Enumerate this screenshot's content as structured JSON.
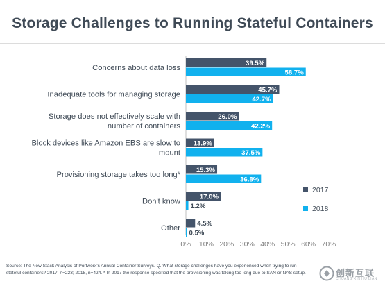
{
  "chart_data": {
    "type": "bar",
    "orientation": "horizontal",
    "title": "Storage Challenges to Running Stateful Containers",
    "categories": [
      [
        "Concerns about data loss"
      ],
      [
        "Inadequate tools for managing storage"
      ],
      [
        "Storage does not effectively scale with",
        "number of containers"
      ],
      [
        "Block devices like Amazon EBS are slow to",
        "mount"
      ],
      [
        "Provisioning storage takes too long*"
      ],
      [
        "Don't know"
      ],
      [
        "Other"
      ]
    ],
    "series": [
      {
        "name": "2017",
        "color": "#44546a",
        "values": [
          39.5,
          45.7,
          26.0,
          13.9,
          15.3,
          17.0,
          4.5
        ],
        "labels": [
          "39.5%",
          "45.7%",
          "26.0%",
          "13.9%",
          "15.3%",
          "17.0%",
          "4.5%"
        ]
      },
      {
        "name": "2018",
        "color": "#11b1ee",
        "values": [
          58.7,
          42.7,
          42.2,
          37.5,
          36.8,
          1.2,
          0.5
        ],
        "labels": [
          "58.7%",
          "42.7%",
          "42.2%",
          "37.5%",
          "36.8%",
          "1.2%",
          "0.5%"
        ]
      }
    ],
    "xlim": [
      0,
      70
    ],
    "xticks": [
      "0%",
      "10%",
      "20%",
      "30%",
      "40%",
      "50%",
      "60%",
      "70%"
    ],
    "grid": false,
    "legend_position": "right"
  },
  "source": "Source: The New Stack Analysis of Portworx's Annual Container Surveys. Q. What storage challenges have you experienced when trying to run stateful containers? 2017, n=223; 2018, n=424. * In 2017 the response specified that the provisioning was taking too long due to SAN or NAS setup.",
  "watermark": {
    "text": "创新互联",
    "sub": "CHUANG XIN HU LIAN"
  }
}
